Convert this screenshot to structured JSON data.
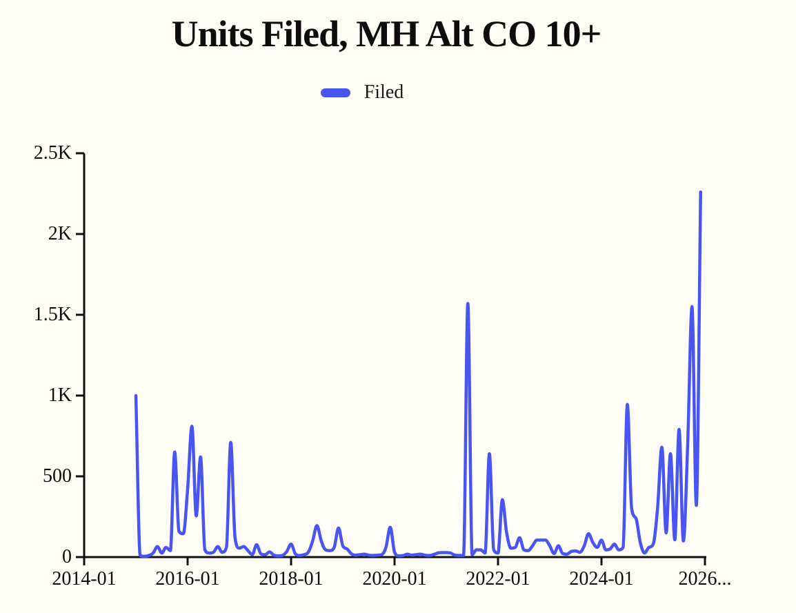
{
  "title": "Units Filed, MH Alt CO 10+",
  "legend": {
    "label": "Filed",
    "swatch_color": "#4855f0"
  },
  "chart_data": {
    "type": "line",
    "title": "Units Filed, MH Alt CO 10+",
    "xlabel": "",
    "ylabel": "",
    "grid": false,
    "legend_position": "top-center",
    "background_color": "#fffdf5",
    "axis_color": "#111111",
    "ylim": [
      0,
      2500
    ],
    "yticks": {
      "labels": [
        "0",
        "500",
        "1K",
        "1.5K",
        "2K",
        "2.5K"
      ],
      "values": [
        0,
        500,
        1000,
        1500,
        2000,
        2500
      ]
    },
    "xticks": {
      "labels": [
        "2014-01",
        "2016-01",
        "2018-01",
        "2020-01",
        "2022-01",
        "2024-01",
        "2026..."
      ],
      "months_from_2014_01": [
        0,
        24,
        48,
        72,
        96,
        120,
        144
      ]
    },
    "series": [
      {
        "name": "Filed",
        "color": "#4855f0",
        "x": [
          "2015-01",
          "2015-02",
          "2015-03",
          "2015-04",
          "2015-05",
          "2015-06",
          "2015-07",
          "2015-08",
          "2015-09",
          "2015-10",
          "2015-11",
          "2015-12",
          "2016-01",
          "2016-02",
          "2016-03",
          "2016-04",
          "2016-05",
          "2016-06",
          "2016-07",
          "2016-08",
          "2016-09",
          "2016-10",
          "2016-11",
          "2016-12",
          "2017-01",
          "2017-02",
          "2017-03",
          "2017-04",
          "2017-05",
          "2017-06",
          "2017-07",
          "2017-08",
          "2017-09",
          "2017-10",
          "2017-11",
          "2017-12",
          "2018-01",
          "2018-02",
          "2018-03",
          "2018-04",
          "2018-05",
          "2018-06",
          "2018-07",
          "2018-08",
          "2018-09",
          "2018-10",
          "2018-11",
          "2018-12",
          "2019-01",
          "2019-02",
          "2019-03",
          "2019-04",
          "2019-05",
          "2019-06",
          "2019-07",
          "2019-08",
          "2019-09",
          "2019-10",
          "2019-11",
          "2019-12",
          "2020-01",
          "2020-02",
          "2020-03",
          "2020-04",
          "2020-05",
          "2020-06",
          "2020-07",
          "2020-08",
          "2020-09",
          "2020-10",
          "2020-11",
          "2020-12",
          "2021-01",
          "2021-02",
          "2021-03",
          "2021-04",
          "2021-05",
          "2021-06",
          "2021-07",
          "2021-08",
          "2021-09",
          "2021-10",
          "2021-11",
          "2021-12",
          "2022-01",
          "2022-02",
          "2022-03",
          "2022-04",
          "2022-05",
          "2022-06",
          "2022-07",
          "2022-08",
          "2022-09",
          "2022-10",
          "2022-11",
          "2022-12",
          "2023-01",
          "2023-02",
          "2023-03",
          "2023-04",
          "2023-05",
          "2023-06",
          "2023-07",
          "2023-08",
          "2023-09",
          "2023-10",
          "2023-11",
          "2023-12",
          "2024-01",
          "2024-02",
          "2024-03",
          "2024-04",
          "2024-05",
          "2024-06",
          "2024-07",
          "2024-08",
          "2024-09",
          "2024-10",
          "2024-11",
          "2024-12",
          "2025-01",
          "2025-02",
          "2025-03",
          "2025-04",
          "2025-05",
          "2025-06",
          "2025-07",
          "2025-08",
          "2025-09",
          "2025-10",
          "2025-11",
          "2025-12"
        ],
        "values": [
          1000,
          10,
          5,
          10,
          25,
          65,
          25,
          60,
          40,
          650,
          160,
          145,
          420,
          810,
          255,
          620,
          45,
          25,
          30,
          65,
          30,
          60,
          710,
          120,
          55,
          65,
          40,
          15,
          77,
          20,
          15,
          32,
          12,
          8,
          10,
          35,
          80,
          20,
          10,
          15,
          30,
          100,
          195,
          100,
          45,
          40,
          60,
          180,
          70,
          50,
          20,
          12,
          15,
          18,
          12,
          10,
          12,
          15,
          60,
          185,
          30,
          8,
          10,
          18,
          12,
          15,
          18,
          12,
          10,
          15,
          25,
          28,
          28,
          25,
          12,
          10,
          10,
          1570,
          15,
          45,
          45,
          25,
          640,
          45,
          25,
          355,
          150,
          55,
          60,
          120,
          45,
          40,
          70,
          105,
          105,
          105,
          70,
          22,
          70,
          22,
          18,
          35,
          38,
          30,
          70,
          145,
          90,
          60,
          105,
          45,
          50,
          80,
          45,
          60,
          945,
          300,
          240,
          90,
          25,
          60,
          80,
          300,
          680,
          150,
          640,
          107,
          790,
          100,
          700,
          1550,
          320,
          2260
        ]
      }
    ]
  }
}
